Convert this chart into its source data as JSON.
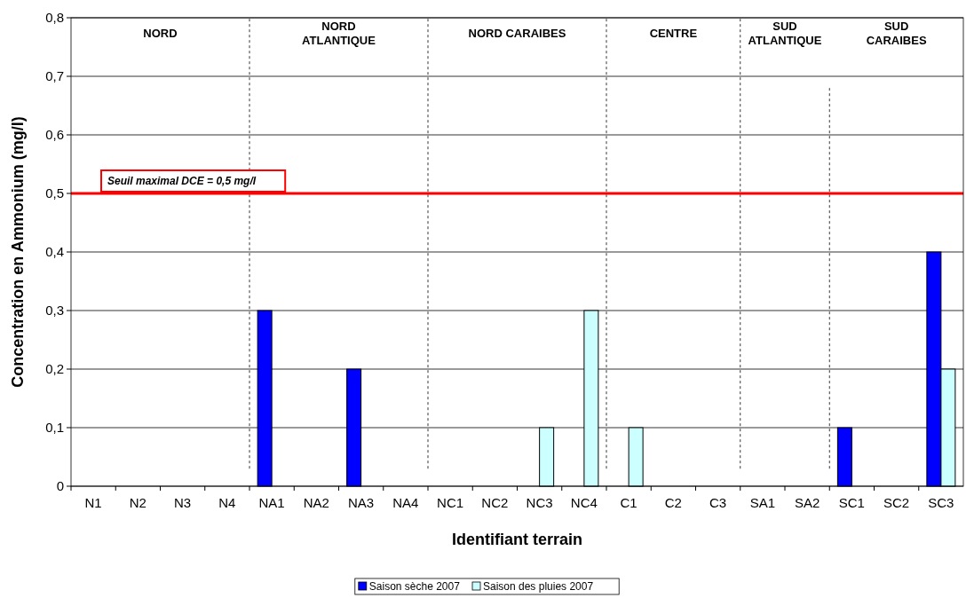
{
  "chart_data": {
    "type": "bar",
    "xlabel": "Identifiant terrain",
    "ylabel": "Concentration en Ammonium (mg/l)",
    "categories": [
      "N1",
      "N2",
      "N3",
      "N4",
      "NA1",
      "NA2",
      "NA3",
      "NA4",
      "NC1",
      "NC2",
      "NC3",
      "NC4",
      "C1",
      "C2",
      "C3",
      "SA1",
      "SA2",
      "SC1",
      "SC2",
      "SC3"
    ],
    "series": [
      {
        "name": "Saison sèche 2007",
        "color": "#0000ff",
        "values": [
          0,
          0,
          0,
          0,
          0.3,
          0,
          0.2,
          0,
          0,
          0,
          0,
          0,
          0,
          0,
          0,
          0,
          0,
          0.1,
          0,
          0.4
        ]
      },
      {
        "name": "Saison des pluies 2007",
        "color": "#ccffff",
        "values": [
          0,
          0,
          0,
          0,
          0,
          0,
          0,
          0,
          0,
          0,
          0.1,
          0.3,
          0.1,
          0,
          0,
          0,
          0,
          0,
          0,
          0.2
        ]
      }
    ],
    "ylim": [
      0,
      0.8
    ],
    "yticks": [
      0,
      {
        "value": 0.1,
        "label": "0,1"
      },
      {
        "value": 0.2,
        "label": "0,2"
      },
      {
        "value": 0.3,
        "label": "0,3"
      },
      {
        "value": 0.4,
        "label": "0,4"
      },
      {
        "value": 0.5,
        "label": "0,5"
      },
      {
        "value": 0.6,
        "label": "0,6"
      },
      {
        "value": 0.7,
        "label": "0,7"
      },
      {
        "value": 0.8,
        "label": "0,8"
      }
    ],
    "grid": "y",
    "legend": "bottom",
    "ref_lines": [
      {
        "axis": "y",
        "value": 0.5,
        "label": "Seuil maximal DCE = 0,5 mg/l",
        "color": "#ff0000"
      }
    ],
    "annotations": [
      "NORD",
      "NORD\nATLANTIQUE",
      "NORD CARAIBES",
      "CENTRE",
      "SUD\nATLANTIQUE",
      "SUD\nCARAIBES"
    ]
  }
}
